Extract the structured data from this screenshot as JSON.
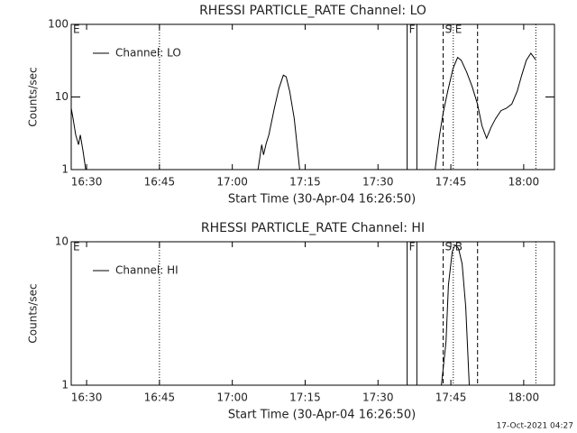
{
  "chart_data": [
    {
      "type": "line",
      "title": "RHESSI PARTICLE_RATE Channel: LO",
      "xlabel": "Start Time (30-Apr-04 16:26:50)",
      "ylabel": "Counts/sec",
      "log_y": true,
      "ylim": [
        1,
        100
      ],
      "yticks": [
        1,
        10,
        100
      ],
      "xlim": [
        "16:26:50",
        "18:06:20"
      ],
      "xticks": [
        "16:30",
        "16:45",
        "17:00",
        "17:15",
        "17:30",
        "17:45",
        "18:00"
      ],
      "x": [
        "16:26:50",
        "16:27:13",
        "16:27:46",
        "16:28:20",
        "16:28:42",
        "16:29:16",
        "16:29:49",
        "16:45",
        "17:05:18",
        "17:06:04",
        "17:06:26",
        "17:06:59",
        "17:07:32",
        "17:08:39",
        "17:09:35",
        "17:10:31",
        "17:11:05",
        "17:11:49",
        "17:12:45",
        "17:13:52",
        "17:30",
        "17:41:45",
        "17:42:41",
        "17:43:25",
        "17:44:21",
        "17:45:28",
        "17:46:24",
        "17:47:08",
        "17:48:15",
        "17:49:22",
        "17:50:29",
        "17:51:25",
        "17:52:21",
        "17:53:16",
        "17:54:12",
        "17:55:19",
        "17:56:26",
        "17:57:33",
        "17:58:40",
        "17:59:36",
        "18:00:32",
        "18:01:28",
        "18:02:24"
      ],
      "series": [
        {
          "name": "Channel: LO",
          "color": "#000000",
          "values": [
            7,
            5,
            3,
            2.2,
            3,
            1.8,
            1,
            null,
            1,
            2.2,
            1.6,
            2.3,
            3,
            7,
            13,
            20,
            19,
            12,
            5,
            1,
            null,
            1,
            3,
            6,
            12,
            25,
            35,
            32,
            22,
            14,
            8,
            4,
            2.7,
            3.8,
            5,
            6.5,
            7,
            8,
            12,
            20,
            32,
            40,
            33
          ]
        }
      ],
      "markers": [
        {
          "time": "16:26:50",
          "label": "E"
        },
        {
          "time": "16:45",
          "style": "dotted"
        },
        {
          "time": "17:36",
          "style": "solid",
          "label": "F"
        },
        {
          "time": "17:38",
          "style": "solid"
        },
        {
          "time": "17:43:25",
          "style": "dashed",
          "label": "S"
        },
        {
          "time": "17:45:30",
          "style": "dotted",
          "label": "E"
        },
        {
          "time": "17:50:30",
          "style": "dashed"
        },
        {
          "time": "18:02:30",
          "style": "dotted"
        }
      ]
    },
    {
      "type": "line",
      "title": "RHESSI PARTICLE_RATE Channel: HI",
      "xlabel": "Start Time (30-Apr-04 16:26:50)",
      "ylabel": "Counts/sec",
      "log_y": true,
      "ylim": [
        1,
        10
      ],
      "yticks": [
        1,
        10
      ],
      "xlim": [
        "16:26:50",
        "18:06:20"
      ],
      "xticks": [
        "16:30",
        "16:45",
        "17:00",
        "17:15",
        "17:30",
        "17:45",
        "18:00"
      ],
      "x": [
        "17:43:03",
        "17:44:00",
        "17:44:30",
        "17:45:17",
        "17:45:50",
        "17:46:35",
        "17:47:20",
        "17:48:04",
        "17:48:48"
      ],
      "series": [
        {
          "name": "Channel: HI",
          "color": "#000000",
          "values": [
            1,
            2,
            5,
            8.5,
            9.5,
            9,
            7,
            3.5,
            1
          ]
        }
      ],
      "markers": [
        {
          "time": "16:26:50",
          "label": "E"
        },
        {
          "time": "16:45",
          "style": "dotted"
        },
        {
          "time": "17:36",
          "style": "solid",
          "label": "F"
        },
        {
          "time": "17:38",
          "style": "solid"
        },
        {
          "time": "17:43:25",
          "style": "dashed",
          "label": "S"
        },
        {
          "time": "17:45:30",
          "style": "dotted",
          "label": "B"
        },
        {
          "time": "17:50:30",
          "style": "dashed"
        },
        {
          "time": "18:02:30",
          "style": "dotted"
        }
      ]
    }
  ],
  "footer": "17-Oct-2021 04:27"
}
